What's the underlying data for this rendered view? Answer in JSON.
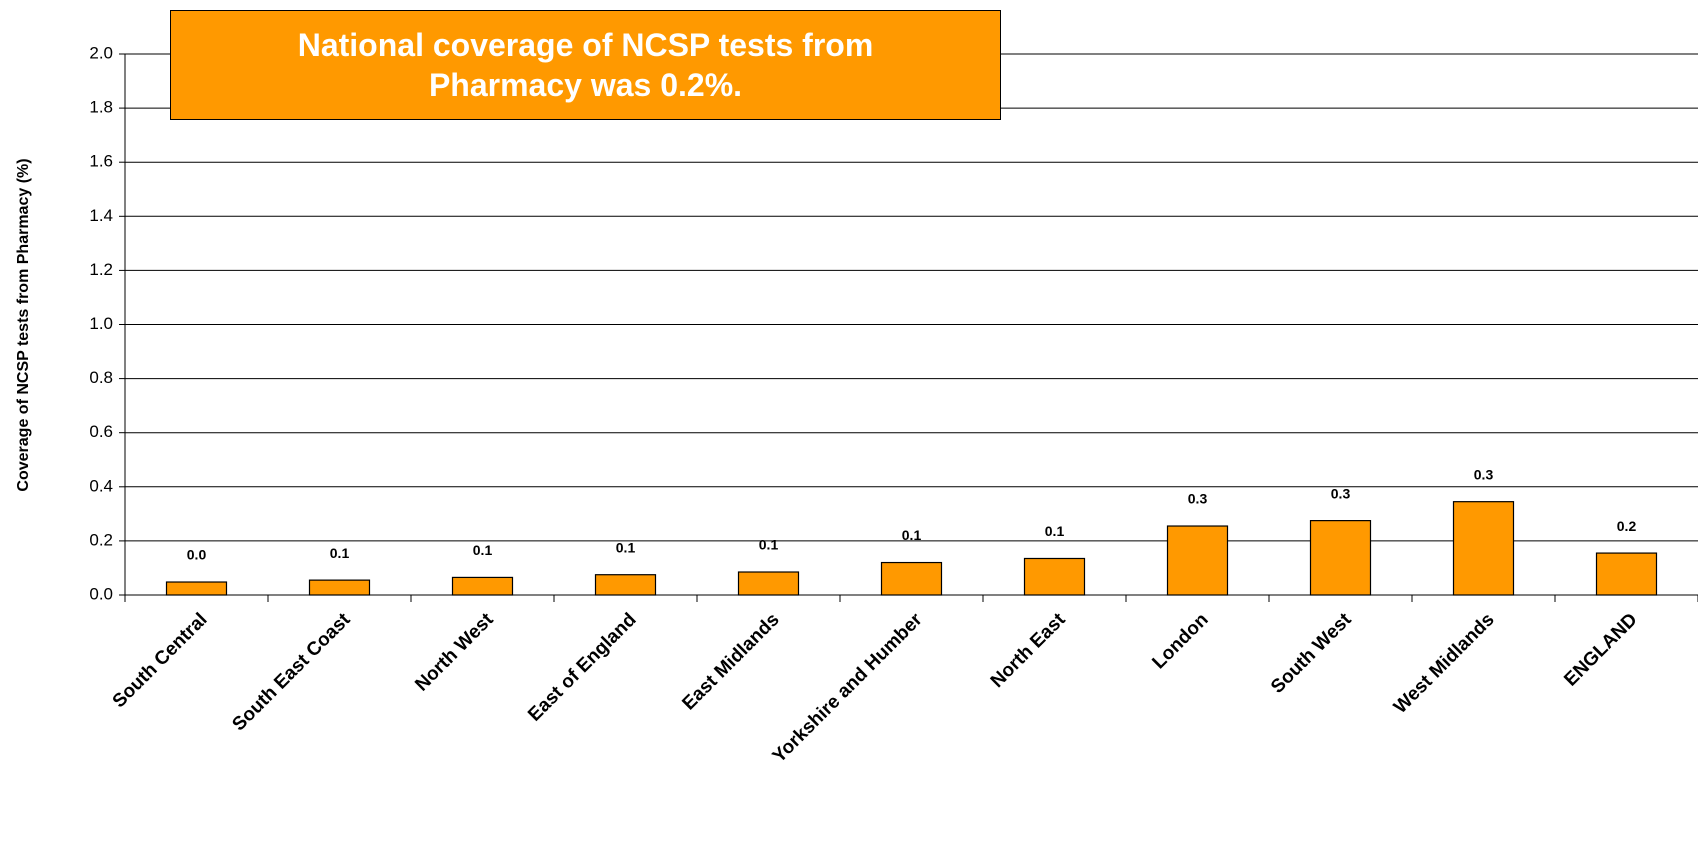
{
  "chart_data": {
    "type": "bar",
    "annotation": "National coverage of NCSP tests from Pharmacy was 0.2%.",
    "y_label": "Coverage of NCSP tests from Pharmacy (%)",
    "categories": [
      "South Central",
      "South East Coast",
      "North West",
      "East of England",
      "East Midlands",
      "Yorkshire and Humber",
      "North East",
      "London",
      "South West",
      "West Midlands",
      "ENGLAND"
    ],
    "values": [
      0.048,
      0.055,
      0.065,
      0.075,
      0.085,
      0.12,
      0.135,
      0.255,
      0.275,
      0.345,
      0.155
    ],
    "value_labels": [
      "0.0",
      "0.1",
      "0.1",
      "0.1",
      "0.1",
      "0.1",
      "0.1",
      "0.3",
      "0.3",
      "0.3",
      "0.2"
    ],
    "color": "#ff9900",
    "ylim": [
      0,
      2
    ],
    "yticks": [
      {
        "value": 0,
        "label": "0.0"
      },
      {
        "value": 0.2,
        "label": "0.2"
      },
      {
        "value": 0.4,
        "label": "0.4"
      },
      {
        "value": 0.6,
        "label": "0.6"
      },
      {
        "value": 0.8,
        "label": "0.8"
      },
      {
        "value": 1,
        "label": "1.0"
      },
      {
        "value": 1.2,
        "label": "1.2"
      },
      {
        "value": 1.4,
        "label": "1.4"
      },
      {
        "value": 1.6,
        "label": "1.6"
      },
      {
        "value": 1.8,
        "label": "1.8"
      },
      {
        "value": 2,
        "label": "2.0"
      }
    ],
    "grid": true
  }
}
